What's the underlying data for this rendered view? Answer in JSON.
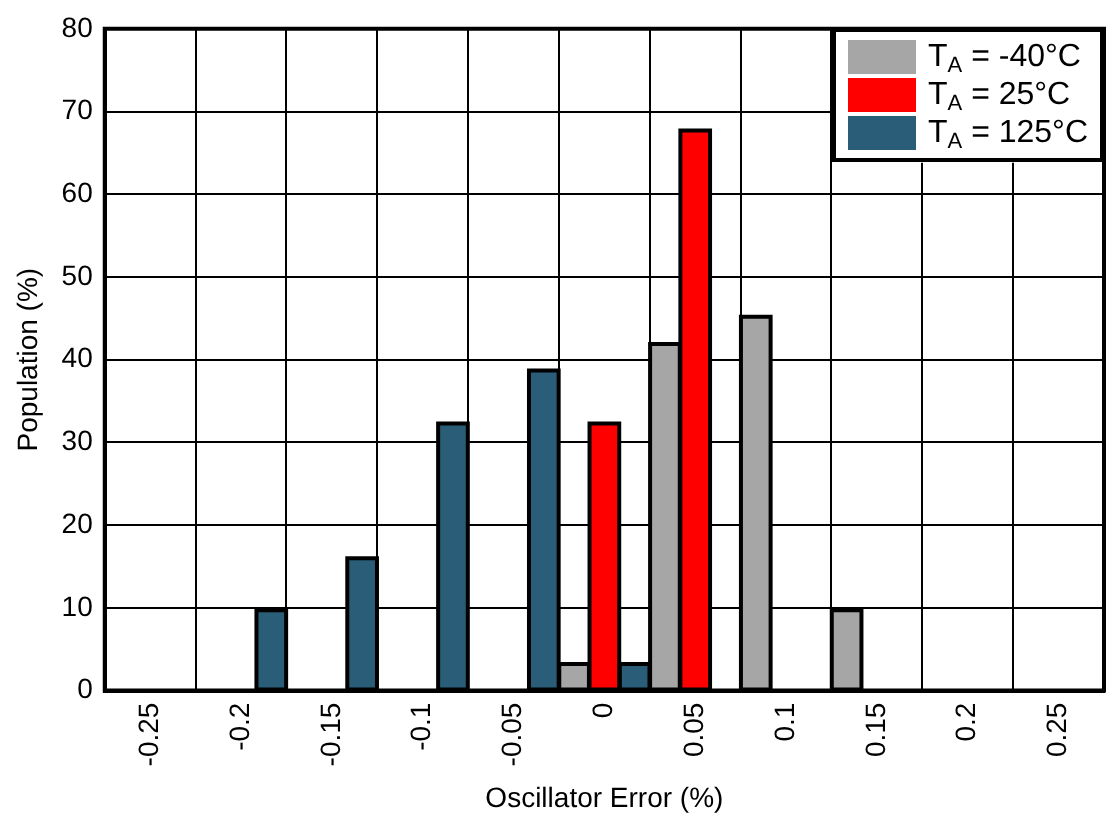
{
  "chart_data": {
    "type": "bar",
    "xlabel": "Oscillator Error (%)",
    "ylabel": "Population (%)",
    "categories": [
      "-0.25",
      "-0.2",
      "-0.15",
      "-0.1",
      "-0.05",
      "0",
      "0.05",
      "0.1",
      "0.15",
      "0.2",
      "0.25"
    ],
    "series": [
      {
        "name": "T$_{A}$ = -40°C",
        "color": "#a6a6a6",
        "values": [
          null,
          null,
          null,
          null,
          null,
          3.2,
          41.9,
          45.2,
          9.7,
          null,
          null
        ]
      },
      {
        "name": "T$_{A}$ = 25°C",
        "color": "#ff0000",
        "values": [
          null,
          null,
          null,
          null,
          null,
          32.3,
          67.7,
          null,
          null,
          null,
          null
        ]
      },
      {
        "name": "T$_{A}$ = 125°C",
        "color": "#2a5d77",
        "values": [
          null,
          9.7,
          16,
          32.3,
          38.7,
          3.2,
          null,
          null,
          null,
          null,
          null
        ]
      }
    ],
    "ylim": [
      0,
      80
    ],
    "yticks": [
      0,
      10,
      20,
      30,
      40,
      50,
      60,
      70,
      80
    ],
    "grid": true,
    "legend": "top right"
  }
}
